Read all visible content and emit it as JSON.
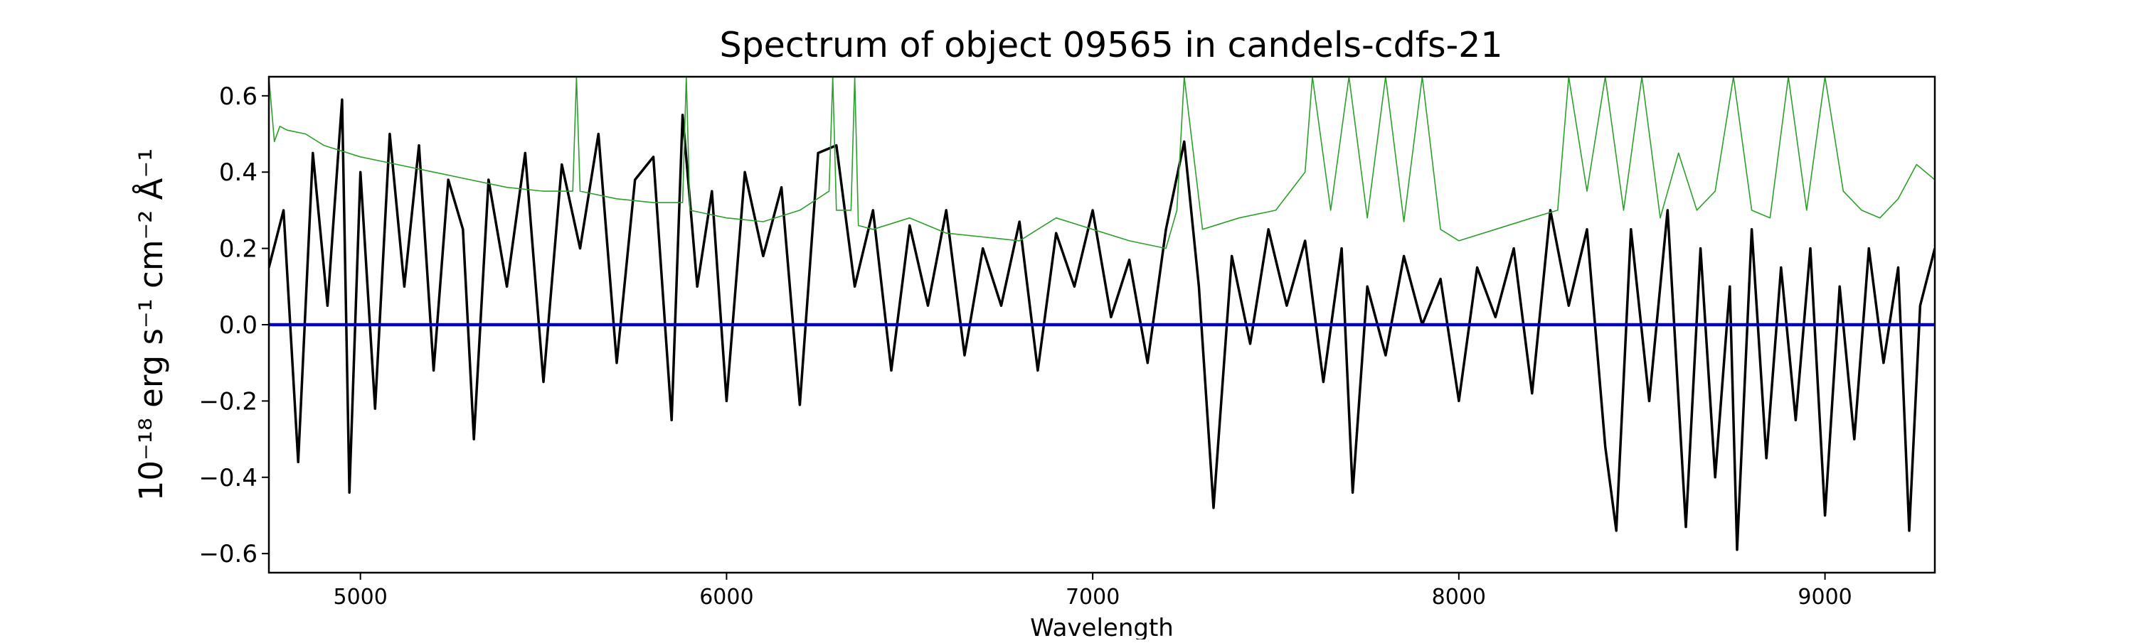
{
  "chart_data": {
    "type": "line",
    "title": "Spectrum of object 09565 in candels-cdfs-21",
    "xlabel": "Wavelength",
    "ylabel": "10⁻¹⁸ erg s⁻¹ cm⁻² Å⁻¹",
    "xlim": [
      4750,
      9300
    ],
    "ylim": [
      -0.65,
      0.65
    ],
    "x_ticks": [
      5000,
      6000,
      7000,
      8000,
      9000
    ],
    "x_tick_labels": [
      "5000",
      "6000",
      "7000",
      "8000",
      "9000"
    ],
    "y_ticks": [
      -0.6,
      -0.4,
      -0.2,
      0.0,
      0.2,
      0.4,
      0.6
    ],
    "y_tick_labels": [
      "−0.6",
      "−0.4",
      "−0.2",
      "0.0",
      "0.2",
      "0.4",
      "0.6"
    ],
    "grid": false,
    "series": [
      {
        "color": "#000000",
        "x": [
          4750,
          4790,
          4830,
          4870,
          4910,
          4950,
          4970,
          5000,
          5040,
          5080,
          5120,
          5160,
          5200,
          5240,
          5280,
          5310,
          5350,
          5400,
          5450,
          5500,
          5550,
          5600,
          5650,
          5700,
          5750,
          5800,
          5850,
          5880,
          5920,
          5960,
          6000,
          6050,
          6100,
          6150,
          6200,
          6250,
          6300,
          6350,
          6400,
          6450,
          6500,
          6550,
          6600,
          6650,
          6700,
          6750,
          6800,
          6850,
          6900,
          6950,
          7000,
          7050,
          7100,
          7150,
          7200,
          7250,
          7290,
          7330,
          7380,
          7430,
          7480,
          7530,
          7580,
          7630,
          7680,
          7710,
          7750,
          7800,
          7850,
          7900,
          7950,
          8000,
          8050,
          8100,
          8150,
          8200,
          8250,
          8300,
          8350,
          8400,
          8430,
          8470,
          8520,
          8570,
          8620,
          8660,
          8700,
          8740,
          8760,
          8800,
          8840,
          8880,
          8920,
          8960,
          9000,
          9040,
          9080,
          9120,
          9160,
          9200,
          9230,
          9260,
          9300
        ],
        "values": [
          0.15,
          0.3,
          -0.36,
          0.45,
          0.05,
          0.59,
          -0.44,
          0.4,
          -0.22,
          0.5,
          0.1,
          0.47,
          -0.12,
          0.38,
          0.25,
          -0.3,
          0.38,
          0.1,
          0.45,
          -0.15,
          0.42,
          0.2,
          0.5,
          -0.1,
          0.38,
          0.44,
          -0.25,
          0.55,
          0.1,
          0.35,
          -0.2,
          0.4,
          0.18,
          0.36,
          -0.21,
          0.45,
          0.47,
          0.1,
          0.3,
          -0.12,
          0.26,
          0.05,
          0.3,
          -0.08,
          0.2,
          0.05,
          0.27,
          -0.12,
          0.24,
          0.1,
          0.3,
          0.02,
          0.17,
          -0.1,
          0.25,
          0.48,
          0.1,
          -0.48,
          0.18,
          -0.05,
          0.25,
          0.05,
          0.22,
          -0.15,
          0.2,
          -0.44,
          0.1,
          -0.08,
          0.18,
          0.0,
          0.12,
          -0.2,
          0.15,
          0.02,
          0.2,
          -0.18,
          0.3,
          0.05,
          0.25,
          -0.32,
          -0.54,
          0.25,
          -0.2,
          0.3,
          -0.53,
          0.2,
          -0.4,
          0.1,
          -0.59,
          0.25,
          -0.35,
          0.15,
          -0.25,
          0.2,
          -0.5,
          0.1,
          -0.3,
          0.2,
          -0.1,
          0.15,
          -0.54,
          0.05,
          0.2
        ]
      },
      {
        "color": "#2ca02c",
        "x": [
          4750,
          4765,
          4780,
          4800,
          4850,
          4900,
          5000,
          5100,
          5200,
          5300,
          5400,
          5500,
          5580,
          5590,
          5600,
          5700,
          5800,
          5880,
          5890,
          5900,
          6000,
          6100,
          6200,
          6280,
          6290,
          6300,
          6340,
          6350,
          6360,
          6400,
          6500,
          6600,
          6700,
          6800,
          6900,
          7000,
          7100,
          7200,
          7230,
          7250,
          7300,
          7400,
          7500,
          7580,
          7600,
          7650,
          7700,
          7750,
          7800,
          7850,
          7900,
          7950,
          8000,
          8100,
          8200,
          8270,
          8300,
          8350,
          8400,
          8450,
          8500,
          8550,
          8600,
          8650,
          8700,
          8750,
          8800,
          8850,
          8900,
          8950,
          9000,
          9050,
          9100,
          9150,
          9200,
          9250,
          9300
        ],
        "values": [
          0.65,
          0.48,
          0.52,
          0.51,
          0.5,
          0.47,
          0.44,
          0.42,
          0.4,
          0.38,
          0.36,
          0.35,
          0.35,
          0.65,
          0.35,
          0.33,
          0.32,
          0.32,
          0.65,
          0.3,
          0.28,
          0.27,
          0.3,
          0.35,
          0.65,
          0.3,
          0.3,
          0.65,
          0.26,
          0.25,
          0.28,
          0.24,
          0.23,
          0.22,
          0.28,
          0.25,
          0.22,
          0.2,
          0.3,
          0.65,
          0.25,
          0.28,
          0.3,
          0.4,
          0.65,
          0.3,
          0.65,
          0.28,
          0.65,
          0.27,
          0.65,
          0.25,
          0.22,
          0.25,
          0.28,
          0.3,
          0.65,
          0.35,
          0.65,
          0.3,
          0.65,
          0.28,
          0.45,
          0.3,
          0.35,
          0.65,
          0.3,
          0.28,
          0.65,
          0.3,
          0.65,
          0.35,
          0.3,
          0.28,
          0.33,
          0.42,
          0.38
        ]
      },
      {
        "color": "#0000cc",
        "x": [
          4750,
          9300
        ],
        "values": [
          0.0,
          0.0
        ]
      }
    ]
  }
}
